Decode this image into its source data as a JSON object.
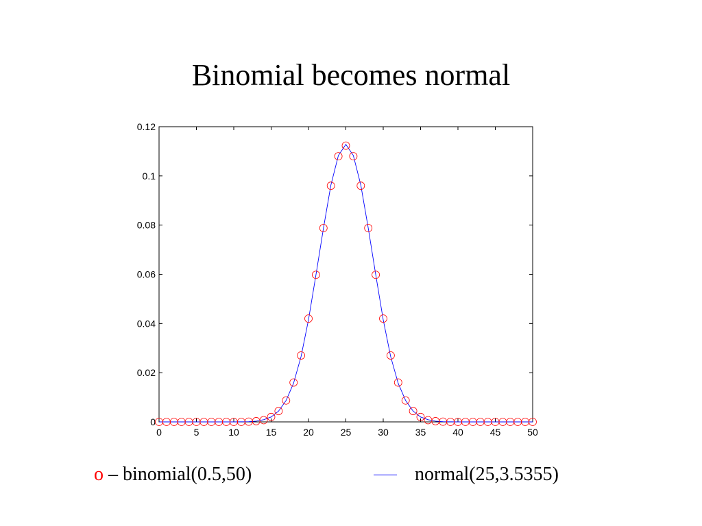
{
  "title": "Binomial becomes normal",
  "legend": {
    "binomial_marker": "o",
    "binomial_label": "– binomial(0.5,50)",
    "normal_label": "normal(25,3.5355)"
  },
  "colors": {
    "binomial": "#ff0000",
    "normal": "#0000ff",
    "axes": "#000000"
  },
  "chart_data": {
    "type": "line",
    "title": "Binomial becomes normal",
    "xlabel": "",
    "ylabel": "",
    "xlim": [
      0,
      50
    ],
    "ylim": [
      0,
      0.12
    ],
    "xticks": [
      0,
      5,
      10,
      15,
      20,
      25,
      30,
      35,
      40,
      45,
      50
    ],
    "yticks": [
      0,
      0.02,
      0.04,
      0.06,
      0.08,
      0.1,
      0.12
    ],
    "ytick_labels": [
      "0",
      "0.02",
      "0.04",
      "0.06",
      "0.08",
      "0.1",
      "0.12"
    ],
    "grid": false,
    "legend_placement": "below",
    "series": [
      {
        "name": "binomial(0.5,50)",
        "style": "markers-circle",
        "x": [
          0,
          1,
          2,
          3,
          4,
          5,
          6,
          7,
          8,
          9,
          10,
          11,
          12,
          13,
          14,
          15,
          16,
          17,
          18,
          19,
          20,
          21,
          22,
          23,
          24,
          25,
          26,
          27,
          28,
          29,
          30,
          31,
          32,
          33,
          34,
          35,
          36,
          37,
          38,
          39,
          40,
          41,
          42,
          43,
          44,
          45,
          46,
          47,
          48,
          49,
          50
        ],
        "values": [
          0,
          0,
          0,
          0,
          0,
          0,
          0,
          0,
          0,
          0,
          0,
          0,
          0.0001,
          0.0003,
          0.0007,
          0.002,
          0.0044,
          0.0087,
          0.016,
          0.027,
          0.042,
          0.0598,
          0.0788,
          0.096,
          0.108,
          0.1123,
          0.108,
          0.096,
          0.0788,
          0.0598,
          0.042,
          0.027,
          0.016,
          0.0087,
          0.0044,
          0.002,
          0.0007,
          0.0003,
          0.0001,
          0,
          0,
          0,
          0,
          0,
          0,
          0,
          0,
          0,
          0,
          0,
          0
        ]
      },
      {
        "name": "normal(25,3.5355)",
        "style": "line",
        "x": [
          0,
          5,
          10,
          12,
          13,
          14,
          15,
          16,
          17,
          18,
          19,
          20,
          21,
          22,
          23,
          24,
          25,
          26,
          27,
          28,
          29,
          30,
          31,
          32,
          33,
          34,
          35,
          36,
          37,
          38,
          40,
          45,
          50
        ],
        "values": [
          0,
          0,
          0,
          0.0001,
          0.0003,
          0.0009,
          0.002,
          0.0044,
          0.0087,
          0.0157,
          0.0265,
          0.0415,
          0.0598,
          0.0787,
          0.0963,
          0.1083,
          0.1128,
          0.1083,
          0.0963,
          0.0787,
          0.0598,
          0.0415,
          0.0265,
          0.0157,
          0.0087,
          0.0044,
          0.002,
          0.0009,
          0.0003,
          0.0001,
          0,
          0,
          0
        ]
      }
    ]
  }
}
